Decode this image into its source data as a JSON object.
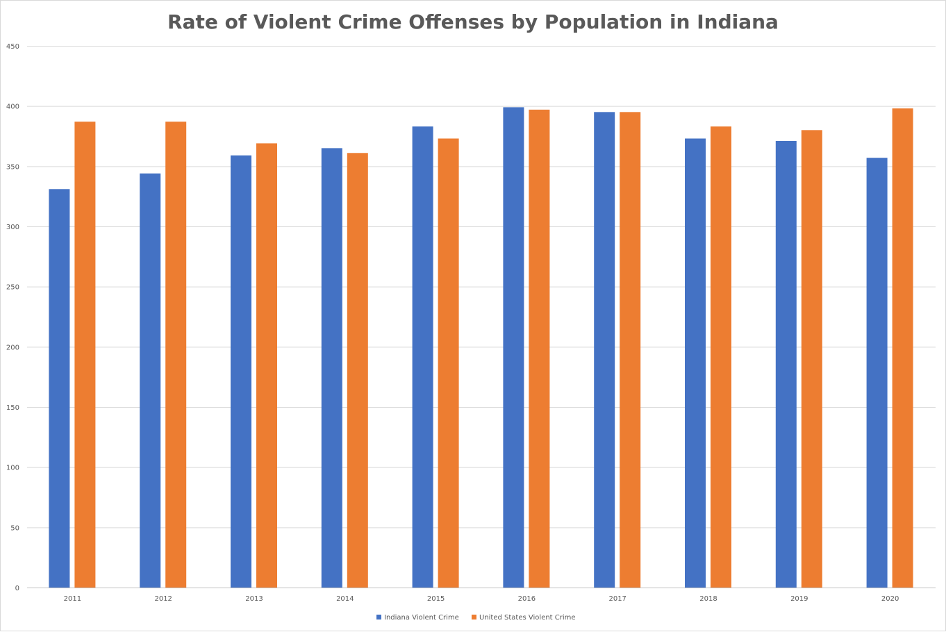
{
  "chart_data": {
    "type": "bar",
    "title": "Rate of Violent Crime Offenses by Population in Indiana",
    "categories": [
      "2011",
      "2012",
      "2013",
      "2014",
      "2015",
      "2016",
      "2017",
      "2018",
      "2019",
      "2020"
    ],
    "series": [
      {
        "name": "Indiana Violent Crime",
        "color": "#4472C4",
        "values": [
          331,
          344,
          359,
          365,
          383,
          399,
          395,
          373,
          371,
          357
        ]
      },
      {
        "name": "United States Violent Crime",
        "color": "#ED7D31",
        "values": [
          387,
          387,
          369,
          361,
          373,
          397,
          395,
          383,
          380,
          398
        ]
      }
    ],
    "ylim": [
      0,
      450
    ],
    "yticks": [
      0,
      50,
      100,
      150,
      200,
      250,
      300,
      350,
      400,
      450
    ],
    "grid": true,
    "legend": "bottom"
  }
}
